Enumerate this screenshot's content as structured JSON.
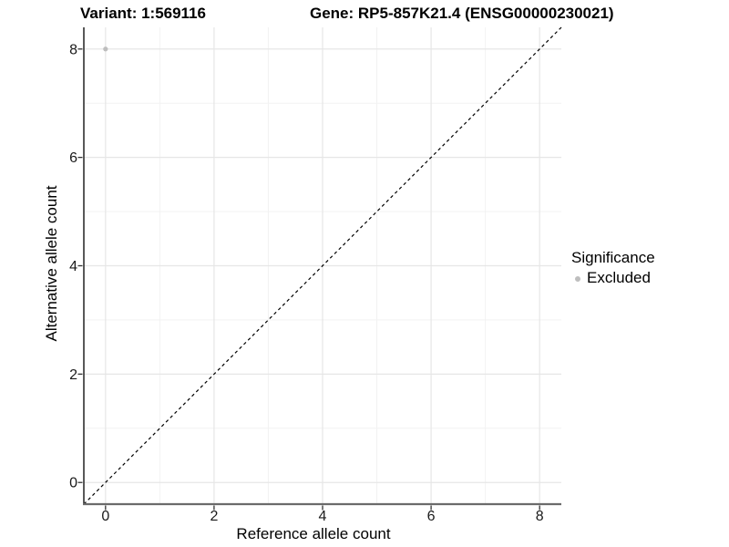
{
  "chart_data": {
    "type": "scatter",
    "titles": {
      "left": "Variant: 1:569116",
      "right": "Gene: RP5-857K21.4 (ENSG00000230021)"
    },
    "xlabel": "Reference allele count",
    "ylabel": "Alternative allele count",
    "xlim": [
      -0.4,
      8.4
    ],
    "ylim": [
      -0.4,
      8.4
    ],
    "xticks": [
      0,
      2,
      4,
      6,
      8
    ],
    "yticks": [
      0,
      2,
      4,
      6,
      8
    ],
    "xticks_minor": [
      1,
      3,
      5,
      7
    ],
    "yticks_minor": [
      1,
      3,
      5,
      7
    ],
    "grid": "on",
    "series": [
      {
        "name": "Excluded",
        "marker": "circle",
        "color": "#bebebe",
        "point_radius": 2.6,
        "points": [
          {
            "x": 0,
            "y": 8
          }
        ]
      }
    ],
    "reference_line": {
      "kind": "identity y=x",
      "style": "dashed",
      "color": "#000000",
      "from": [
        -0.4,
        -0.4
      ],
      "to": [
        8.4,
        8.4
      ]
    },
    "legend": {
      "title": "Significance",
      "position": "right-middle",
      "items": [
        {
          "label": "Excluded",
          "color": "#bebebe"
        }
      ]
    },
    "style_colors": {
      "background": "#ffffff",
      "grid_major": "#e6e6e6",
      "grid_minor": "#f2f2f2",
      "axis_line_y": "#2e2e2e",
      "axis_line_x": "#6b6b6b",
      "tick_mark": "#333333",
      "tick_label": "#1a1a1a",
      "text": "#000000"
    }
  }
}
